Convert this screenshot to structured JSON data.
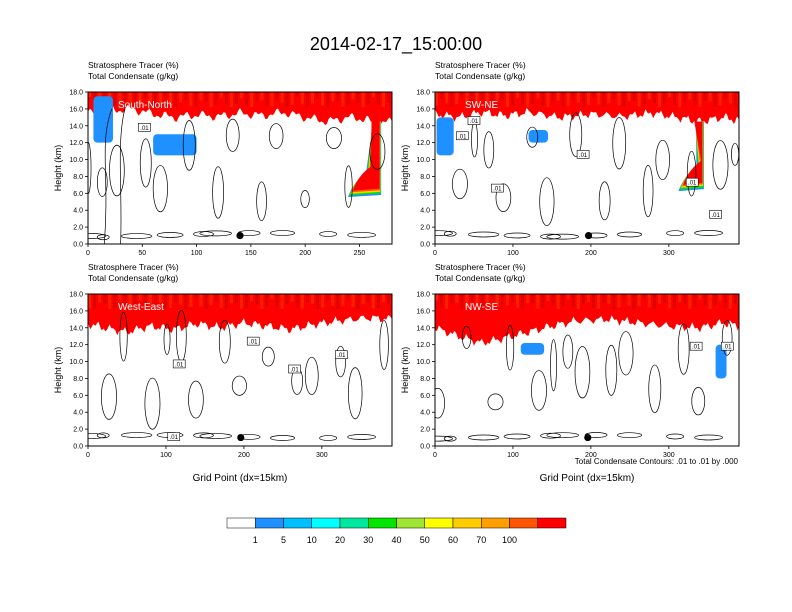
{
  "figure": {
    "title": "2014-02-17_15:00:00",
    "xlabel": "Grid Point (dx=15km)",
    "contour_note": "Total Condensate Contours: .01 to .01 by .000",
    "colorbar": {
      "colors": [
        "#ffffff",
        "#1e90ff",
        "#00bfff",
        "#00ffff",
        "#00e8a0",
        "#00e600",
        "#a0e632",
        "#ffff00",
        "#ffcc00",
        "#ffa000",
        "#ff5500",
        "#ff0000"
      ],
      "labels": [
        "1",
        "5",
        "10",
        "20",
        "30",
        "40",
        "50",
        "60",
        "70",
        "100"
      ]
    }
  },
  "chart_data": [
    {
      "type": "heatmap",
      "panel_label": "South-North",
      "subtitle1": "Stratosphere Tracer   (%)",
      "subtitle2": "Total Condensate   (g/kg)",
      "ylabel": "Height (km)",
      "xlabel": "",
      "xlim": [
        0,
        280
      ],
      "ylim": [
        0,
        18
      ],
      "xticks": [
        0,
        50,
        100,
        150,
        200,
        250
      ],
      "yticks": [
        0.0,
        2.0,
        4.0,
        6.0,
        8.0,
        10.0,
        12.0,
        14.0,
        16.0,
        18.0
      ],
      "marker": {
        "x": 140,
        "y": 1.0
      },
      "contour_labels": [
        {
          "text": ".01",
          "x": 52,
          "y": 13.7
        }
      ],
      "tracer_base": [
        [
          0,
          15.6
        ],
        [
          10,
          15.2
        ],
        [
          20,
          15.8
        ],
        [
          40,
          16.0
        ],
        [
          60,
          15.4
        ],
        [
          80,
          15.0
        ],
        [
          100,
          15.3
        ],
        [
          120,
          15.1
        ],
        [
          140,
          15.5
        ],
        [
          160,
          15.2
        ],
        [
          180,
          15.6
        ],
        [
          200,
          15.0
        ],
        [
          220,
          14.5
        ],
        [
          240,
          15.0
        ],
        [
          255,
          14.8
        ],
        [
          265,
          14.2
        ],
        [
          280,
          14.5
        ]
      ],
      "tracer_intrusions": [
        {
          "x": [
            245,
            270
          ],
          "bottom": 5.8
        }
      ],
      "tracer_patches": [
        {
          "x": 5,
          "y": 12.0,
          "w": 18,
          "h": 5.5
        },
        {
          "x": 60,
          "y": 10.5,
          "w": 40,
          "h": 2.5
        }
      ]
    },
    {
      "type": "heatmap",
      "panel_label": "SW-NE",
      "subtitle1": "Stratosphere Tracer   (%)",
      "subtitle2": "Total Condensate   (g/kg)",
      "ylabel": "Height (km)",
      "xlabel": "",
      "xlim": [
        0,
        390
      ],
      "ylim": [
        0,
        18
      ],
      "xticks": [
        0,
        100,
        200,
        300
      ],
      "yticks": [
        0.0,
        2.0,
        4.0,
        6.0,
        8.0,
        10.0,
        12.0,
        14.0,
        16.0,
        18.0
      ],
      "marker": {
        "x": 197,
        "y": 1.0
      },
      "contour_labels": [
        {
          "text": ".01",
          "x": 50,
          "y": 14.5
        },
        {
          "text": ".01",
          "x": 35,
          "y": 12.7
        },
        {
          "text": ".01",
          "x": 80,
          "y": 6.5
        },
        {
          "text": ".01",
          "x": 190,
          "y": 10.5
        },
        {
          "text": ".01",
          "x": 330,
          "y": 7.2
        },
        {
          "text": ".01",
          "x": 360,
          "y": 3.4
        }
      ],
      "tracer_base": [
        [
          0,
          15.4
        ],
        [
          30,
          15.0
        ],
        [
          60,
          15.6
        ],
        [
          90,
          15.2
        ],
        [
          120,
          15.6
        ],
        [
          160,
          15.0
        ],
        [
          200,
          15.4
        ],
        [
          240,
          15.1
        ],
        [
          280,
          15.5
        ],
        [
          310,
          15.0
        ],
        [
          340,
          14.5
        ],
        [
          370,
          15.0
        ],
        [
          390,
          14.6
        ]
      ],
      "tracer_intrusions": [
        {
          "x": [
            320,
            345
          ],
          "bottom": 6.5
        }
      ],
      "tracer_patches": [
        {
          "x": 2,
          "y": 10.5,
          "w": 22,
          "h": 4.5
        },
        {
          "x": 120,
          "y": 12.0,
          "w": 25,
          "h": 1.5
        }
      ]
    },
    {
      "type": "heatmap",
      "panel_label": "West-East",
      "subtitle1": "Stratosphere Tracer   (%)",
      "subtitle2": "Total Condensate   (g/kg)",
      "ylabel": "Height (km)",
      "xlabel": "Grid Point (dx=15km)",
      "xlim": [
        0,
        390
      ],
      "ylim": [
        0,
        18
      ],
      "xticks": [
        0,
        100,
        200,
        300
      ],
      "yticks": [
        0.0,
        2.0,
        4.0,
        6.0,
        8.0,
        10.0,
        12.0,
        14.0,
        16.0,
        18.0
      ],
      "marker": {
        "x": 196,
        "y": 1.0
      },
      "contour_labels": [
        {
          "text": ".01",
          "x": 212,
          "y": 12.3
        },
        {
          "text": ".01",
          "x": 117,
          "y": 9.6
        },
        {
          "text": ".01",
          "x": 265,
          "y": 9.0
        },
        {
          "text": ".01",
          "x": 325,
          "y": 10.7
        },
        {
          "text": ".01",
          "x": 110,
          "y": 1.0
        }
      ],
      "tracer_base": [
        [
          0,
          14.5
        ],
        [
          20,
          14.0
        ],
        [
          50,
          13.5
        ],
        [
          80,
          14.2
        ],
        [
          110,
          13.8
        ],
        [
          140,
          14.5
        ],
        [
          170,
          14.0
        ],
        [
          200,
          14.6
        ],
        [
          230,
          14.2
        ],
        [
          260,
          13.8
        ],
        [
          290,
          14.4
        ],
        [
          320,
          14.8
        ],
        [
          360,
          15.2
        ],
        [
          390,
          15.0
        ]
      ],
      "tracer_intrusions": [],
      "tracer_patches": []
    },
    {
      "type": "heatmap",
      "panel_label": "NW-SE",
      "subtitle1": "Stratosphere Tracer   (%)",
      "subtitle2": "Total Condensate   (g/kg)",
      "ylabel": "Height (km)",
      "xlabel": "Grid Point (dx=15km)",
      "xlim": [
        0,
        390
      ],
      "ylim": [
        0,
        18
      ],
      "xticks": [
        0,
        100,
        200,
        300
      ],
      "yticks": [
        0.0,
        2.0,
        4.0,
        6.0,
        8.0,
        10.0,
        12.0,
        14.0,
        16.0,
        18.0
      ],
      "marker": {
        "x": 196,
        "y": 1.0
      },
      "contour_labels": [
        {
          "text": ".01",
          "x": 335,
          "y": 11.7
        },
        {
          "text": ".01",
          "x": 375,
          "y": 11.7
        }
      ],
      "tracer_base": [
        [
          0,
          14.0
        ],
        [
          30,
          13.0
        ],
        [
          60,
          12.2
        ],
        [
          90,
          12.8
        ],
        [
          120,
          13.5
        ],
        [
          150,
          14.2
        ],
        [
          180,
          14.8
        ],
        [
          220,
          15.0
        ],
        [
          260,
          14.6
        ],
        [
          300,
          14.2
        ],
        [
          340,
          14.0
        ],
        [
          370,
          14.6
        ],
        [
          390,
          14.2
        ]
      ],
      "tracer_intrusions": [],
      "tracer_patches": [
        {
          "x": 110,
          "y": 10.8,
          "w": 30,
          "h": 1.4
        },
        {
          "x": 360,
          "y": 8.0,
          "w": 14,
          "h": 4.0
        }
      ]
    }
  ]
}
